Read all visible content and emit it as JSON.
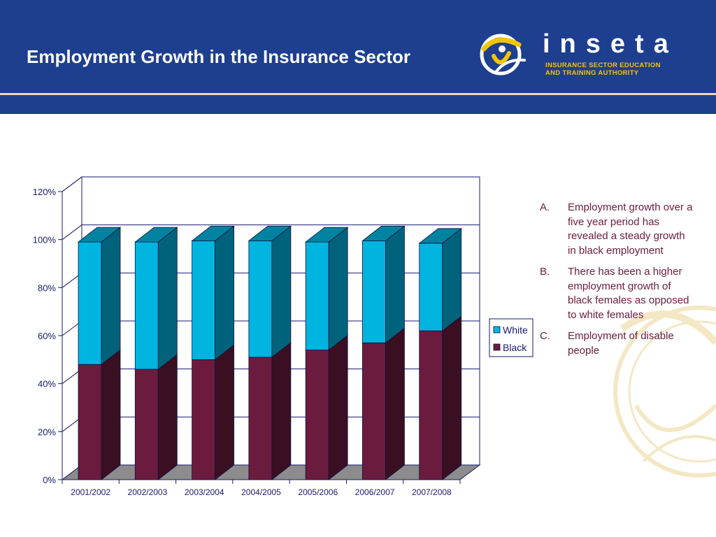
{
  "header": {
    "title": "Employment Growth in the Insurance Sector",
    "logo": {
      "wordmark": "inseta",
      "tagline_line1": "INSURANCE SECTOR EDUCATION",
      "tagline_line2": "AND TRAINING AUTHORITY"
    }
  },
  "colors": {
    "header_bg": "#1e3f8f",
    "accent_line": "#e9dca8",
    "text_maroon": "#6b1b3d",
    "white_series": "#00b4e0",
    "black_series": "#6b1b3d"
  },
  "chart_data": {
    "type": "bar",
    "stacked": true,
    "three_d": true,
    "categories": [
      "2001/2002",
      "2002/2003",
      "2003/2004",
      "2004/2005",
      "2005/2006",
      "2006/2007",
      "2007/2008"
    ],
    "series": [
      {
        "name": "Black",
        "color": "#6b1b3d",
        "values": [
          48,
          46,
          50,
          51,
          54,
          57,
          62
        ]
      },
      {
        "name": "White",
        "color": "#00b4e0",
        "values": [
          51,
          53,
          49.5,
          48.5,
          45,
          42.5,
          36.5
        ]
      }
    ],
    "y_ticks": [
      "0%",
      "20%",
      "40%",
      "60%",
      "80%",
      "100%",
      "120%"
    ],
    "ylim": [
      0,
      120
    ],
    "legend_order": [
      "White",
      "Black"
    ],
    "legend_position": "right",
    "grid": true
  },
  "bullets": [
    {
      "marker": "A.",
      "text": "Employment growth over a five year period has revealed a steady growth in black employment"
    },
    {
      "marker": "B.",
      "text": "There has been a higher employment growth of black females as opposed to white females"
    },
    {
      "marker": "C.",
      "text": "Employment of disable people"
    }
  ]
}
